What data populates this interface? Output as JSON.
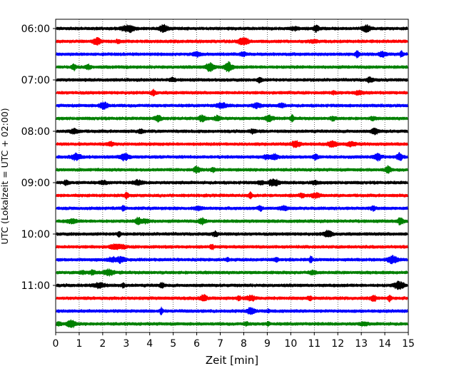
{
  "chart_data": {
    "type": "line",
    "title": "",
    "xlabel": "Zeit  [min]",
    "ylabel": "UTC (Lokalzeit = UTC + 02:00)",
    "xlim": [
      0,
      15
    ],
    "x_ticks": [
      "0",
      "1",
      "2",
      "3",
      "4",
      "5",
      "6",
      "7",
      "8",
      "9",
      "10",
      "11",
      "12",
      "13",
      "14",
      "15"
    ],
    "y_ticks": [
      "06:00",
      "07:00",
      "08:00",
      "09:00",
      "10:00",
      "11:00"
    ],
    "grid": "vertical dotted lines at each minute",
    "line_colors": [
      "#000000",
      "#ff0000",
      "#0000ff",
      "#008000"
    ],
    "series": [
      {
        "start": "06:00",
        "color": "#000000"
      },
      {
        "start": "06:15",
        "color": "#ff0000"
      },
      {
        "start": "06:30",
        "color": "#0000ff"
      },
      {
        "start": "06:45",
        "color": "#008000"
      },
      {
        "start": "07:00",
        "color": "#000000"
      },
      {
        "start": "07:15",
        "color": "#ff0000"
      },
      {
        "start": "07:30",
        "color": "#0000ff"
      },
      {
        "start": "07:45",
        "color": "#008000"
      },
      {
        "start": "08:00",
        "color": "#000000"
      },
      {
        "start": "08:15",
        "color": "#ff0000"
      },
      {
        "start": "08:30",
        "color": "#0000ff"
      },
      {
        "start": "08:45",
        "color": "#008000"
      },
      {
        "start": "09:00",
        "color": "#000000"
      },
      {
        "start": "09:15",
        "color": "#ff0000"
      },
      {
        "start": "09:30",
        "color": "#0000ff"
      },
      {
        "start": "09:45",
        "color": "#008000"
      },
      {
        "start": "10:00",
        "color": "#000000"
      },
      {
        "start": "10:15",
        "color": "#ff0000"
      },
      {
        "start": "10:30",
        "color": "#0000ff"
      },
      {
        "start": "10:45",
        "color": "#008000"
      },
      {
        "start": "11:00",
        "color": "#000000"
      },
      {
        "start": "11:15",
        "color": "#ff0000"
      },
      {
        "start": "11:30",
        "color": "#0000ff"
      },
      {
        "start": "11:45",
        "color": "#008000"
      }
    ]
  }
}
